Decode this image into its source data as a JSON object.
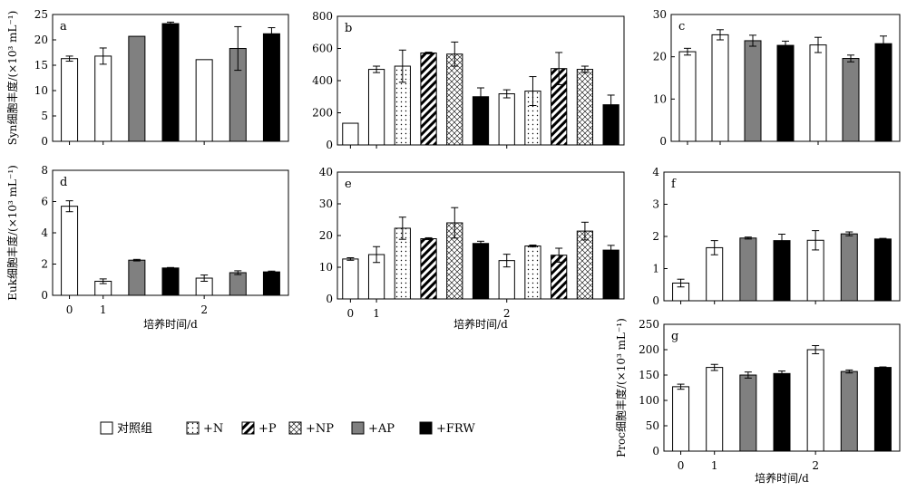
{
  "chart_data": [
    {
      "id": "a",
      "type": "bar",
      "panel_label": "a",
      "ylabel": "Syn细胞丰度/(×10³ mL⁻¹)",
      "ylim": [
        0,
        25
      ],
      "yticks": [
        0,
        5,
        10,
        15,
        20,
        25
      ],
      "xlabel": "",
      "xticks": [],
      "bars": [
        {
          "group": "对照组",
          "value": 16.3,
          "err": 0.5
        },
        {
          "group": "对照组",
          "value": 16.8,
          "err": 1.6
        },
        {
          "group": "+AP",
          "value": 20.7,
          "err": 0
        },
        {
          "group": "+FRW",
          "value": 23.2,
          "err": 0.3
        },
        {
          "group": "对照组",
          "value": 16.1,
          "err": 0
        },
        {
          "group": "+AP",
          "value": 18.3,
          "err": 4.3
        },
        {
          "group": "+FRW",
          "value": 21.2,
          "err": 1.2
        }
      ]
    },
    {
      "id": "b",
      "type": "bar",
      "panel_label": "b",
      "ylabel": "",
      "ylim": [
        0,
        800
      ],
      "yticks": [
        0,
        200,
        400,
        600,
        800
      ],
      "xlabel": "",
      "xticks": [],
      "bars": [
        {
          "group": "对照组",
          "value": 135,
          "err": 0
        },
        {
          "group": "对照组",
          "value": 470,
          "err": 20
        },
        {
          "group": "+N",
          "value": 490,
          "err": 100
        },
        {
          "group": "+P",
          "value": 572,
          "err": 5
        },
        {
          "group": "+NP",
          "value": 565,
          "err": 75
        },
        {
          "group": "+FRW",
          "value": 300,
          "err": 55
        },
        {
          "group": "对照组",
          "value": 318,
          "err": 25
        },
        {
          "group": "+N",
          "value": 335,
          "err": 90
        },
        {
          "group": "+P",
          "value": 475,
          "err": 100
        },
        {
          "group": "+NP",
          "value": 470,
          "err": 20
        },
        {
          "group": "+FRW",
          "value": 250,
          "err": 60
        }
      ]
    },
    {
      "id": "c",
      "type": "bar",
      "panel_label": "c",
      "ylabel": "",
      "ylim": [
        0,
        30
      ],
      "yticks": [
        0,
        10,
        20,
        30
      ],
      "xlabel": "",
      "xticks": [],
      "bars": [
        {
          "group": "对照组",
          "value": 21.2,
          "err": 0.8
        },
        {
          "group": "对照组",
          "value": 25.2,
          "err": 1.2
        },
        {
          "group": "+AP",
          "value": 23.8,
          "err": 1.3
        },
        {
          "group": "+FRW",
          "value": 22.7,
          "err": 1.0
        },
        {
          "group": "对照组",
          "value": 22.8,
          "err": 1.8
        },
        {
          "group": "+AP",
          "value": 19.6,
          "err": 0.8
        },
        {
          "group": "+FRW",
          "value": 23.1,
          "err": 1.8
        }
      ]
    },
    {
      "id": "d",
      "type": "bar",
      "panel_label": "d",
      "ylabel": "Euk细胞丰度/(×10³ mL⁻¹)",
      "ylim": [
        0,
        8
      ],
      "yticks": [
        0,
        2,
        4,
        6,
        8
      ],
      "xlabel": "培养时间/d",
      "xticks": [
        "0",
        "1",
        "2"
      ],
      "bars": [
        {
          "group": "对照组",
          "value": 5.7,
          "err": 0.35
        },
        {
          "group": "对照组",
          "value": 0.9,
          "err": 0.15
        },
        {
          "group": "+AP",
          "value": 2.25,
          "err": 0.05
        },
        {
          "group": "+FRW",
          "value": 1.75,
          "err": 0.03
        },
        {
          "group": "对照组",
          "value": 1.1,
          "err": 0.2
        },
        {
          "group": "+AP",
          "value": 1.45,
          "err": 0.12
        },
        {
          "group": "+FRW",
          "value": 1.5,
          "err": 0.05
        }
      ]
    },
    {
      "id": "e",
      "type": "bar",
      "panel_label": "e",
      "ylabel": "",
      "ylim": [
        0,
        40
      ],
      "yticks": [
        0,
        10,
        20,
        30,
        40
      ],
      "xlabel": "培养时间/d",
      "xticks": [
        "0",
        "1",
        "2"
      ],
      "bars": [
        {
          "group": "对照组",
          "value": 12.6,
          "err": 0.4
        },
        {
          "group": "对照组",
          "value": 14,
          "err": 2.5
        },
        {
          "group": "+N",
          "value": 22.3,
          "err": 3.5
        },
        {
          "group": "+P",
          "value": 19,
          "err": 0.3
        },
        {
          "group": "+NP",
          "value": 24,
          "err": 4.8
        },
        {
          "group": "+FRW",
          "value": 17.5,
          "err": 0.7
        },
        {
          "group": "对照组",
          "value": 12.1,
          "err": 2.0
        },
        {
          "group": "+N",
          "value": 16.7,
          "err": 0.3
        },
        {
          "group": "+P",
          "value": 13.8,
          "err": 2.2
        },
        {
          "group": "+NP",
          "value": 21.4,
          "err": 2.8
        },
        {
          "group": "+FRW",
          "value": 15.4,
          "err": 1.5
        }
      ]
    },
    {
      "id": "f",
      "type": "bar",
      "panel_label": "f",
      "ylabel": "",
      "ylim": [
        0,
        4
      ],
      "yticks": [
        0,
        1,
        2,
        3,
        4
      ],
      "xlabel": "",
      "xticks": [],
      "bars": [
        {
          "group": "对照组",
          "value": 0.55,
          "err": 0.12
        },
        {
          "group": "对照组",
          "value": 1.65,
          "err": 0.22
        },
        {
          "group": "+AP",
          "value": 1.95,
          "err": 0.03
        },
        {
          "group": "+FRW",
          "value": 1.87,
          "err": 0.2
        },
        {
          "group": "对照组",
          "value": 1.88,
          "err": 0.3
        },
        {
          "group": "+AP",
          "value": 2.08,
          "err": 0.06
        },
        {
          "group": "+FRW",
          "value": 1.92,
          "err": 0.02
        }
      ]
    },
    {
      "id": "g",
      "type": "bar",
      "panel_label": "g",
      "ylabel": "Proc细胞丰度/(×10³ mL⁻¹)",
      "ylim": [
        0,
        250
      ],
      "yticks": [
        0,
        50,
        100,
        150,
        200,
        250
      ],
      "xlabel": "培养时间/d",
      "xticks": [
        "0",
        "1",
        "2"
      ],
      "bars": [
        {
          "group": "对照组",
          "value": 127,
          "err": 5
        },
        {
          "group": "对照组",
          "value": 165,
          "err": 6
        },
        {
          "group": "+AP",
          "value": 150,
          "err": 6
        },
        {
          "group": "+FRW",
          "value": 153,
          "err": 5
        },
        {
          "group": "对照组",
          "value": 200,
          "err": 8
        },
        {
          "group": "+AP",
          "value": 157,
          "err": 3
        },
        {
          "group": "+FRW",
          "value": 165,
          "err": 1
        }
      ]
    }
  ],
  "legend": {
    "items": [
      {
        "label": "对照组",
        "pattern": "blank"
      },
      {
        "label": "+N",
        "pattern": "dots"
      },
      {
        "label": "+P",
        "pattern": "diag"
      },
      {
        "label": "+NP",
        "pattern": "cross"
      },
      {
        "label": "+AP",
        "pattern": "gray"
      },
      {
        "label": "+FRW",
        "pattern": "black"
      }
    ]
  },
  "colors": {
    "gray": "#808080",
    "black": "#000000",
    "blank": "#ffffff"
  }
}
